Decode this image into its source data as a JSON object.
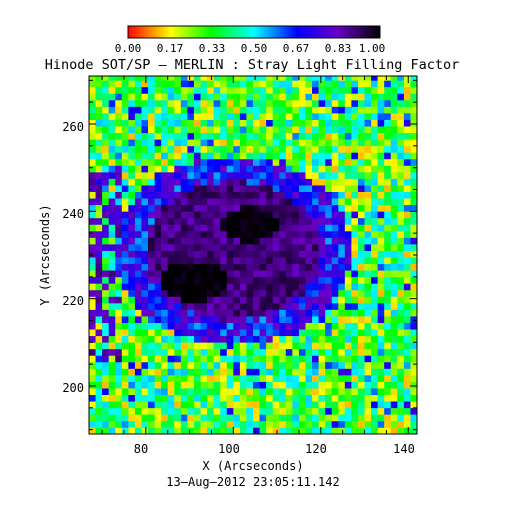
{
  "figure": {
    "title": "Hinode SOT/SP – MERLIN : Stray Light Filling Factor",
    "xlabel": "X (Arcseconds)",
    "ylabel": "Y (Arcseconds)",
    "timestamp": "13–Aug–2012 23:05:11.142",
    "colorbar_ticks": [
      "0.00",
      "0.17",
      "0.33",
      "0.50",
      "0.67",
      "0.83",
      "1.00"
    ],
    "x_ticks": [
      "80",
      "100",
      "120",
      "140"
    ],
    "y_ticks": [
      "200",
      "220",
      "240",
      "260"
    ]
  },
  "chart_data": {
    "type": "heatmap",
    "xlim": [
      67,
      142
    ],
    "ylim": [
      189,
      271
    ],
    "value_range": [
      0.0,
      1.0
    ],
    "colormap": "rainbow (red → yellow → green → cyan → blue → violet → black)",
    "features": [
      {
        "label": "umbra-upper",
        "x": 104,
        "y": 237,
        "value": 1.0
      },
      {
        "label": "umbra-lower",
        "x": 91,
        "y": 224,
        "value": 1.0
      },
      {
        "label": "penumbra",
        "x": 100,
        "y": 230,
        "value": 0.9
      },
      {
        "label": "quiet-sun",
        "x": 125,
        "y": 205,
        "value": 0.3
      }
    ],
    "grid": false
  }
}
